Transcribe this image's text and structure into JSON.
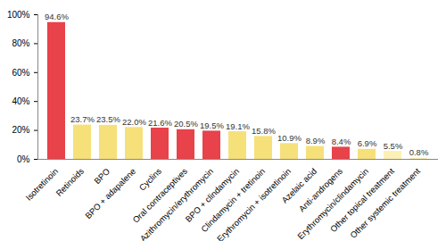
{
  "chart_data": {
    "type": "bar",
    "categories": [
      "Isotretinoin",
      "Retinoids",
      "BPO",
      "BPO + adapalene",
      "Cyclins",
      "Oral contraceptives",
      "Azithromycin/erythromycin",
      "BPO + clindamycin",
      "Clindamycin + tretinoin",
      "Erythromycin + isotretinoin",
      "Azelaic acid",
      "Anti-androgens",
      "Erythromycin/clindamycin",
      "Other topical treatment",
      "Other systemic treatment"
    ],
    "values": [
      94.6,
      23.7,
      23.5,
      22.0,
      21.6,
      20.5,
      19.5,
      19.1,
      15.8,
      10.9,
      8.9,
      8.4,
      6.9,
      5.5,
      0.8
    ],
    "value_labels": [
      "94.6%",
      "23.7%",
      "23.5%",
      "22.0%",
      "21.6%",
      "20.5%",
      "19.5%",
      "19.1%",
      "15.8%",
      "10.9%",
      "8.9%",
      "8.4%",
      "6.9%",
      "5.5%",
      "0.8%"
    ],
    "colors": [
      "#e8424a",
      "#f6e07a",
      "#f6e07a",
      "#f6e07a",
      "#e8424a",
      "#e8424a",
      "#e8424a",
      "#f6e07a",
      "#f6e07a",
      "#f6e07a",
      "#f6e07a",
      "#e8424a",
      "#f6e07a",
      "#fbf0b6",
      "#fbf0b6"
    ],
    "ylim": [
      0,
      100
    ],
    "yticks": [
      {
        "value": 0,
        "label": "0%"
      },
      {
        "value": 20,
        "label": "20%"
      },
      {
        "value": 40,
        "label": "40%"
      },
      {
        "value": 60,
        "label": "60%"
      },
      {
        "value": 80,
        "label": "80%"
      },
      {
        "value": 100,
        "label": "100%"
      }
    ],
    "grid": false,
    "data_labels": true
  }
}
